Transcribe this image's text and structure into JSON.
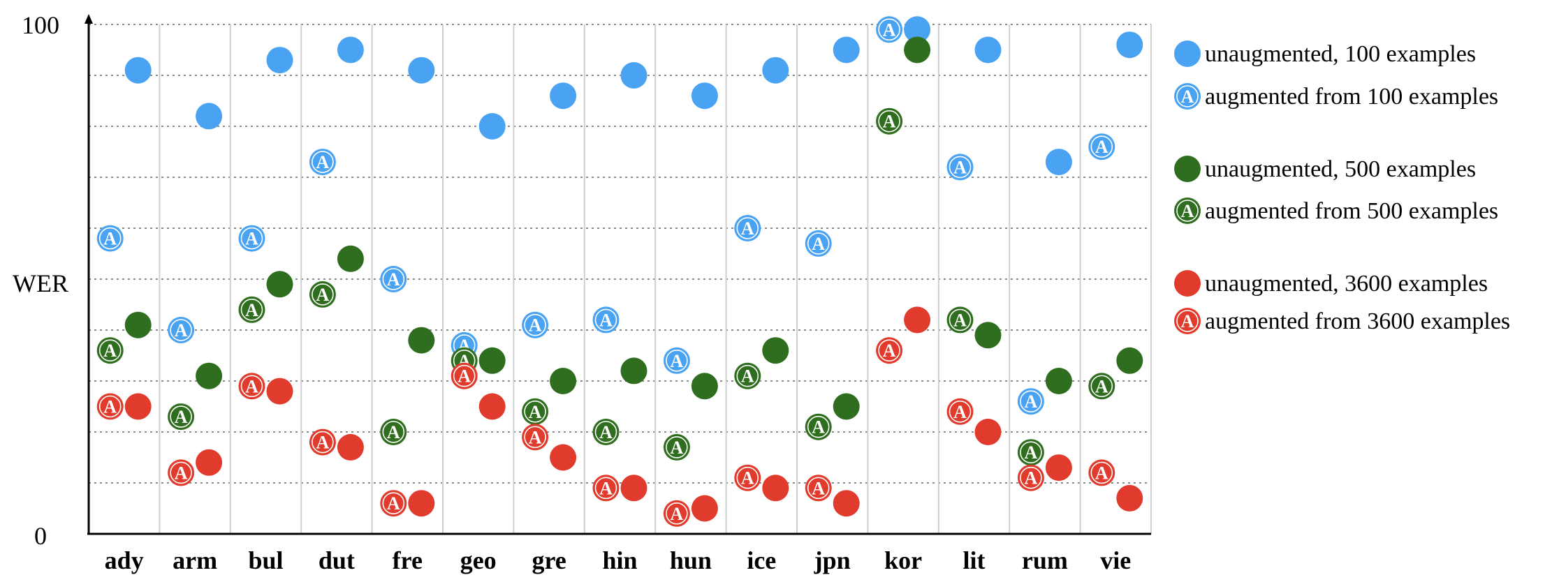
{
  "chart_data": {
    "type": "scatter",
    "ylabel": "WER",
    "ylim": [
      0,
      100
    ],
    "yticks": [
      "0",
      "100"
    ],
    "grid": true,
    "legend_position": "right",
    "categories": [
      "ady",
      "arm",
      "bul",
      "dut",
      "fre",
      "geo",
      "gre",
      "hin",
      "hun",
      "ice",
      "jpn",
      "kor",
      "lit",
      "rum",
      "vie"
    ],
    "series": [
      {
        "name": "unaugmented, 100 examples",
        "color": "#4aa3f2",
        "marker": "plain",
        "slot": "right",
        "values": [
          91,
          82,
          93,
          95,
          91,
          80,
          86,
          90,
          86,
          91,
          95,
          99,
          95,
          73,
          96
        ]
      },
      {
        "name": "augmented from 100 examples",
        "color": "#4aa3f2",
        "marker": "A",
        "slot": "left",
        "values": [
          58,
          40,
          58,
          73,
          50,
          37,
          41,
          42,
          34,
          60,
          57,
          99,
          72,
          26,
          76
        ]
      },
      {
        "name": "unaugmented, 500 examples",
        "color": "#2e6e1e",
        "marker": "plain",
        "slot": "right",
        "values": [
          41,
          31,
          49,
          54,
          38,
          34,
          30,
          32,
          29,
          36,
          25,
          95,
          39,
          30,
          34
        ]
      },
      {
        "name": "augmented from 500 examples",
        "color": "#2e6e1e",
        "marker": "A",
        "slot": "left",
        "values": [
          36,
          23,
          44,
          47,
          20,
          34,
          24,
          20,
          17,
          31,
          21,
          81,
          42,
          16,
          29
        ]
      },
      {
        "name": "unaugmented, 3600 examples",
        "color": "#e03b2c",
        "marker": "plain",
        "slot": "right",
        "values": [
          25,
          14,
          28,
          17,
          6,
          25,
          15,
          9,
          5,
          9,
          6,
          42,
          20,
          13,
          7
        ]
      },
      {
        "name": "augmented from 3600 examples",
        "color": "#e03b2c",
        "marker": "A",
        "slot": "left",
        "values": [
          25,
          12,
          29,
          18,
          6,
          31,
          19,
          9,
          4,
          11,
          9,
          36,
          24,
          11,
          12
        ]
      }
    ]
  }
}
